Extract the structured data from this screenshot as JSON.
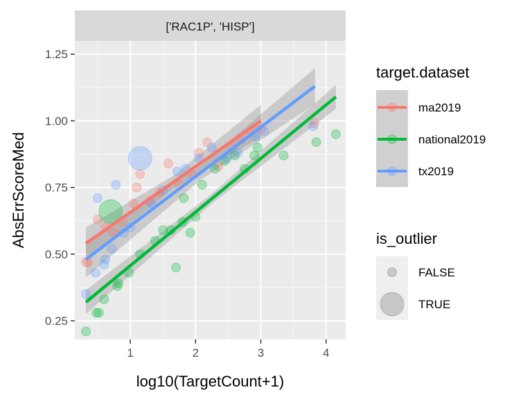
{
  "chart_data": {
    "type": "scatter",
    "facet_label": "['RAC1P', 'HISP']",
    "xlabel": "log10(TargetCount+1)",
    "ylabel": "AbsErrScoreMed",
    "xlim": [
      0.15,
      4.3
    ],
    "ylim": [
      0.18,
      1.3
    ],
    "x_ticks": [
      1,
      2,
      3,
      4
    ],
    "x_tick_labels": [
      "1",
      "2",
      "3",
      "4"
    ],
    "y_ticks": [
      0.25,
      0.5,
      0.75,
      1.0,
      1.25
    ],
    "y_tick_labels": [
      "0.25",
      "0.50",
      "0.75",
      "1.00",
      "1.25"
    ],
    "grid": true,
    "legend_position": "right",
    "legends": {
      "color": {
        "title": "target.dataset",
        "entries": [
          {
            "label": "ma2019",
            "color": "#F8766D"
          },
          {
            "label": "national2019",
            "color": "#00BA38"
          },
          {
            "label": "tx2019",
            "color": "#619CFF"
          }
        ]
      },
      "size": {
        "title": "is_outlier",
        "entries": [
          {
            "label": "FALSE"
          },
          {
            "label": "TRUE"
          }
        ]
      }
    },
    "fits": [
      {
        "series": "ma2019",
        "x": [
          0.32,
          3.0
        ],
        "y": [
          0.54,
          1.0
        ],
        "band": 0.04
      },
      {
        "series": "tx2019",
        "x": [
          0.32,
          3.83
        ],
        "y": [
          0.48,
          1.13
        ],
        "band": 0.045
      },
      {
        "series": "national2019",
        "x": [
          0.32,
          4.15
        ],
        "y": [
          0.32,
          1.09
        ],
        "band": 0.03
      }
    ],
    "series": [
      {
        "name": "ma2019",
        "color": "#F8766D",
        "points": [
          {
            "x": 0.32,
            "y": 0.47,
            "outlier": false
          },
          {
            "x": 0.35,
            "y": 0.47,
            "outlier": false
          },
          {
            "x": 0.5,
            "y": 0.63,
            "outlier": false
          },
          {
            "x": 0.62,
            "y": 0.6,
            "outlier": false
          },
          {
            "x": 0.75,
            "y": 0.58,
            "outlier": false
          },
          {
            "x": 0.88,
            "y": 0.62,
            "outlier": false
          },
          {
            "x": 1.05,
            "y": 0.69,
            "outlier": false
          },
          {
            "x": 1.1,
            "y": 0.75,
            "outlier": false
          },
          {
            "x": 1.15,
            "y": 0.8,
            "outlier": false
          },
          {
            "x": 1.3,
            "y": 0.7,
            "outlier": false
          },
          {
            "x": 1.45,
            "y": 0.73,
            "outlier": false
          },
          {
            "x": 1.58,
            "y": 0.84,
            "outlier": false
          },
          {
            "x": 1.75,
            "y": 0.76,
            "outlier": false
          },
          {
            "x": 1.95,
            "y": 0.8,
            "outlier": false
          },
          {
            "x": 2.05,
            "y": 0.88,
            "outlier": false
          },
          {
            "x": 2.18,
            "y": 0.92,
            "outlier": false
          },
          {
            "x": 2.35,
            "y": 0.83,
            "outlier": false
          },
          {
            "x": 2.55,
            "y": 0.9,
            "outlier": false
          },
          {
            "x": 2.7,
            "y": 0.93,
            "outlier": false
          },
          {
            "x": 2.85,
            "y": 0.96,
            "outlier": false
          },
          {
            "x": 3.0,
            "y": 0.97,
            "outlier": false
          },
          {
            "x": 3.82,
            "y": 0.99,
            "outlier": false
          }
        ]
      },
      {
        "name": "national2019",
        "color": "#00BA38",
        "points": [
          {
            "x": 0.32,
            "y": 0.21,
            "outlier": false
          },
          {
            "x": 0.48,
            "y": 0.28,
            "outlier": false
          },
          {
            "x": 0.52,
            "y": 0.28,
            "outlier": false
          },
          {
            "x": 0.6,
            "y": 0.33,
            "outlier": false
          },
          {
            "x": 0.7,
            "y": 0.66,
            "outlier": true
          },
          {
            "x": 0.8,
            "y": 0.38,
            "outlier": false
          },
          {
            "x": 0.82,
            "y": 0.39,
            "outlier": false
          },
          {
            "x": 0.98,
            "y": 0.43,
            "outlier": false
          },
          {
            "x": 1.15,
            "y": 0.5,
            "outlier": false
          },
          {
            "x": 1.38,
            "y": 0.55,
            "outlier": false
          },
          {
            "x": 1.5,
            "y": 0.59,
            "outlier": false
          },
          {
            "x": 1.62,
            "y": 0.59,
            "outlier": false
          },
          {
            "x": 1.7,
            "y": 0.45,
            "outlier": false
          },
          {
            "x": 1.8,
            "y": 0.62,
            "outlier": false
          },
          {
            "x": 1.82,
            "y": 0.71,
            "outlier": false
          },
          {
            "x": 1.92,
            "y": 0.58,
            "outlier": false
          },
          {
            "x": 2.0,
            "y": 0.64,
            "outlier": false
          },
          {
            "x": 2.1,
            "y": 0.76,
            "outlier": false
          },
          {
            "x": 2.3,
            "y": 0.82,
            "outlier": false
          },
          {
            "x": 2.45,
            "y": 0.85,
            "outlier": false
          },
          {
            "x": 2.6,
            "y": 0.87,
            "outlier": false
          },
          {
            "x": 2.75,
            "y": 0.82,
            "outlier": false
          },
          {
            "x": 2.9,
            "y": 0.87,
            "outlier": false
          },
          {
            "x": 2.95,
            "y": 0.9,
            "outlier": false
          },
          {
            "x": 3.35,
            "y": 0.87,
            "outlier": false
          },
          {
            "x": 3.85,
            "y": 0.92,
            "outlier": false
          },
          {
            "x": 4.15,
            "y": 0.95,
            "outlier": false
          }
        ]
      },
      {
        "name": "tx2019",
        "color": "#619CFF",
        "points": [
          {
            "x": 0.32,
            "y": 0.35,
            "outlier": false
          },
          {
            "x": 0.47,
            "y": 0.43,
            "outlier": false
          },
          {
            "x": 0.5,
            "y": 0.71,
            "outlier": false
          },
          {
            "x": 0.6,
            "y": 0.46,
            "outlier": false
          },
          {
            "x": 0.62,
            "y": 0.48,
            "outlier": false
          },
          {
            "x": 0.72,
            "y": 0.52,
            "outlier": false
          },
          {
            "x": 0.78,
            "y": 0.76,
            "outlier": false
          },
          {
            "x": 0.9,
            "y": 0.58,
            "outlier": false
          },
          {
            "x": 1.0,
            "y": 0.6,
            "outlier": false
          },
          {
            "x": 1.15,
            "y": 0.86,
            "outlier": true
          },
          {
            "x": 1.32,
            "y": 0.69,
            "outlier": false
          },
          {
            "x": 1.5,
            "y": 0.74,
            "outlier": false
          },
          {
            "x": 1.72,
            "y": 0.81,
            "outlier": false
          },
          {
            "x": 1.85,
            "y": 0.82,
            "outlier": false
          },
          {
            "x": 2.05,
            "y": 0.86,
            "outlier": false
          },
          {
            "x": 2.25,
            "y": 0.9,
            "outlier": false
          },
          {
            "x": 2.48,
            "y": 0.86,
            "outlier": false
          },
          {
            "x": 2.65,
            "y": 0.88,
            "outlier": false
          },
          {
            "x": 2.92,
            "y": 0.94,
            "outlier": false
          },
          {
            "x": 3.05,
            "y": 0.96,
            "outlier": false
          },
          {
            "x": 3.8,
            "y": 0.98,
            "outlier": false
          }
        ]
      }
    ]
  }
}
